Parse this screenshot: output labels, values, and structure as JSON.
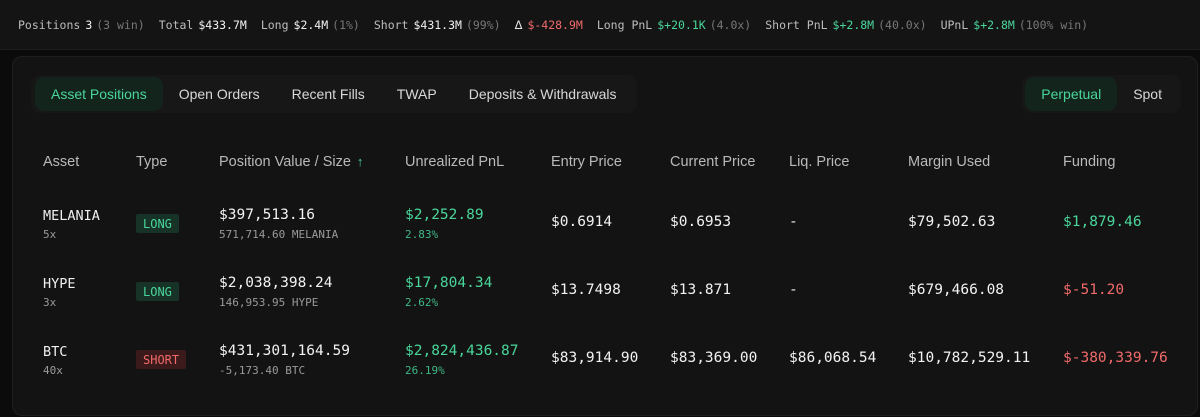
{
  "stats": {
    "positions_label": "Positions",
    "positions_value": "3",
    "positions_sub": "(3 win)",
    "total_label": "Total",
    "total_value": "$433.7M",
    "long_label": "Long",
    "long_value": "$2.4M",
    "long_sub": "(1%)",
    "short_label": "Short",
    "short_value": "$431.3M",
    "short_sub": "(99%)",
    "delta_symbol": "Δ",
    "delta_value": "$-428.9M",
    "long_pnl_label": "Long PnL",
    "long_pnl_value": "$+20.1K",
    "long_pnl_sub": "(4.0x)",
    "short_pnl_label": "Short PnL",
    "short_pnl_value": "$+2.8M",
    "short_pnl_sub": "(40.0x)",
    "upnl_label": "UPnL",
    "upnl_value": "$+2.8M",
    "upnl_sub": "(100% win)"
  },
  "tabs": [
    "Asset Positions",
    "Open Orders",
    "Recent Fills",
    "TWAP",
    "Deposits & Withdrawals"
  ],
  "market_toggle": [
    "Perpetual",
    "Spot"
  ],
  "table": {
    "headers": [
      "Asset",
      "Type",
      "Position Value / Size",
      "Unrealized PnL",
      "Entry Price",
      "Current Price",
      "Liq. Price",
      "Margin Used",
      "Funding"
    ],
    "sort_icon": "arrow-up-icon",
    "sort_glyph": "↑",
    "rows": [
      {
        "asset": "MELANIA",
        "leverage": "5x",
        "type": "LONG",
        "value": "$397,513.16",
        "size": "571,714.60 MELANIA",
        "upnl": "$2,252.89",
        "upnl_pct": "2.83%",
        "entry": "$0.6914",
        "current": "$0.6953",
        "liq": "-",
        "margin": "$79,502.63",
        "funding": "$1,879.46"
      },
      {
        "asset": "HYPE",
        "leverage": "3x",
        "type": "LONG",
        "value": "$2,038,398.24",
        "size": "146,953.95 HYPE",
        "upnl": "$17,804.34",
        "upnl_pct": "2.62%",
        "entry": "$13.7498",
        "current": "$13.871",
        "liq": "-",
        "margin": "$679,466.08",
        "funding": "$-51.20"
      },
      {
        "asset": "BTC",
        "leverage": "40x",
        "type": "SHORT",
        "value": "$431,301,164.59",
        "size": "-5,173.40 BTC",
        "upnl": "$2,824,436.87",
        "upnl_pct": "26.19%",
        "entry": "$83,914.90",
        "current": "$83,369.00",
        "liq": "$86,068.54",
        "margin": "$10,782,529.11",
        "funding": "$-380,339.76"
      }
    ]
  },
  "colors": {
    "positive": "#4ad69b",
    "negative": "#f06a6a",
    "accent_bg": "#12241c"
  }
}
